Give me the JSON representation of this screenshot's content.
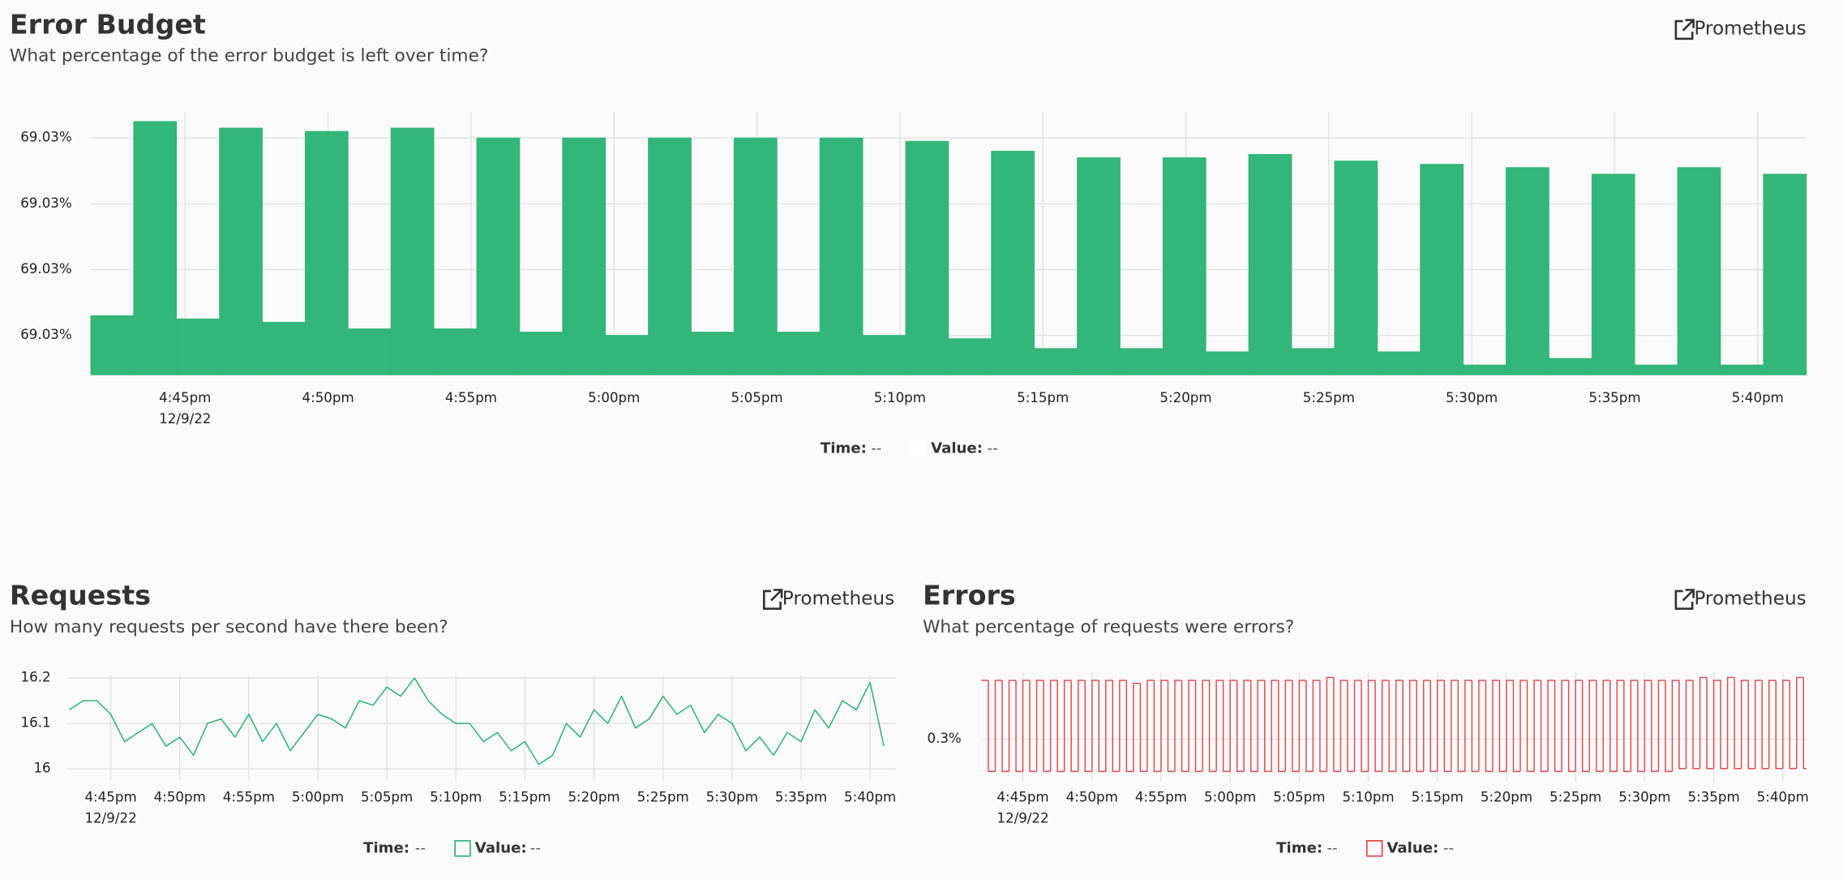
{
  "chart_data": [
    {
      "type": "area",
      "step": true,
      "title": "Error Budget",
      "subtitle": "What percentage of the error budget is left over time?",
      "link": "Prometheus",
      "x": [
        1001.7,
        1003.2,
        1004.7,
        1006.2,
        1007.7,
        1009.2,
        1010.7,
        1012.2,
        1013.7,
        1015.2,
        1016.7,
        1018.2,
        1019.7,
        1021.2,
        1022.7,
        1024.2,
        1025.7,
        1027.2,
        1028.7,
        1030.2,
        1031.7,
        1033.2,
        1034.7,
        1036.2,
        1037.7,
        1039.2,
        1040.7,
        1042.2,
        1043.7,
        1045.2,
        1046.7,
        1048.2,
        1049.7,
        1051.2,
        1052.7,
        1054.2,
        1055.7,
        1057.2,
        1058.7,
        1060.2
      ],
      "values": [
        69.03306,
        69.03365,
        69.03305,
        69.03363,
        69.03304,
        69.03362,
        69.03302,
        69.03363,
        69.03302,
        69.0336,
        69.03301,
        69.0336,
        69.033,
        69.0336,
        69.03301,
        69.0336,
        69.03301,
        69.0336,
        69.033,
        69.03359,
        69.03299,
        69.03356,
        69.03296,
        69.03354,
        69.03296,
        69.03354,
        69.03295,
        69.03355,
        69.03296,
        69.03353,
        69.03295,
        69.03352,
        69.03291,
        69.03351,
        69.03293,
        69.03349,
        69.03291,
        69.03351,
        69.03291,
        69.03349
      ],
      "color": "#33b679",
      "xlim": [
        1001.7,
        1061.7
      ],
      "xticks": [
        {
          "value": 1005,
          "label": "4:45pm"
        },
        {
          "value": 1010,
          "label": "4:50pm"
        },
        {
          "value": 1015,
          "label": "4:55pm"
        },
        {
          "value": 1020,
          "label": "5:00pm"
        },
        {
          "value": 1025,
          "label": "5:05pm"
        },
        {
          "value": 1030,
          "label": "5:10pm"
        },
        {
          "value": 1035,
          "label": "5:15pm"
        },
        {
          "value": 1040,
          "label": "5:20pm"
        },
        {
          "value": 1045,
          "label": "5:25pm"
        },
        {
          "value": 1050,
          "label": "5:30pm"
        },
        {
          "value": 1055,
          "label": "5:35pm"
        },
        {
          "value": 1060,
          "label": "5:40pm"
        }
      ],
      "x_date_label": "12/9/22",
      "ylim": [
        69.03288,
        69.03368
      ],
      "yticks": [
        {
          "value": 69.033,
          "label": "69.03%"
        },
        {
          "value": 69.0332,
          "label": "69.03%"
        },
        {
          "value": 69.0334,
          "label": "69.03%"
        },
        {
          "value": 69.0336,
          "label": "69.03%"
        }
      ],
      "grid": true,
      "legend": {
        "time_label": "Time:",
        "time_value": "--",
        "value_label": "Value:",
        "value_value": "--",
        "swatch_fill": "#ffffff",
        "swatch_stroke": "none"
      }
    },
    {
      "type": "line",
      "step": false,
      "title": "Requests",
      "subtitle": "How many requests per second have there been?",
      "link": "Prometheus",
      "x": [
        1002,
        1003,
        1004,
        1005,
        1006,
        1007,
        1008,
        1009,
        1010,
        1011,
        1012,
        1013,
        1014,
        1015,
        1016,
        1017,
        1018,
        1019,
        1020,
        1021,
        1022,
        1023,
        1024,
        1025,
        1026,
        1027,
        1028,
        1029,
        1030,
        1031,
        1032,
        1033,
        1034,
        1035,
        1036,
        1037,
        1038,
        1039,
        1040,
        1041,
        1042,
        1043,
        1044,
        1045,
        1046,
        1047,
        1048,
        1049,
        1050,
        1051,
        1052,
        1053,
        1054,
        1055,
        1056,
        1057,
        1058,
        1059,
        1060,
        1061
      ],
      "values": [
        16.13,
        16.15,
        16.15,
        16.12,
        16.06,
        16.08,
        16.1,
        16.05,
        16.07,
        16.03,
        16.1,
        16.11,
        16.07,
        16.12,
        16.06,
        16.1,
        16.04,
        16.08,
        16.12,
        16.11,
        16.09,
        16.15,
        16.14,
        16.18,
        16.16,
        16.2,
        16.15,
        16.12,
        16.1,
        16.1,
        16.06,
        16.08,
        16.04,
        16.06,
        16.01,
        16.03,
        16.1,
        16.07,
        16.13,
        16.1,
        16.16,
        16.09,
        16.11,
        16.16,
        16.12,
        16.14,
        16.08,
        16.12,
        16.1,
        16.04,
        16.07,
        16.03,
        16.08,
        16.06,
        16.13,
        16.09,
        16.15,
        16.13,
        16.19,
        16.05
      ],
      "color": "#35b57a",
      "xlim": [
        1001.85,
        1061.85
      ],
      "xticks": [
        {
          "value": 1005,
          "label": "4:45pm"
        },
        {
          "value": 1010,
          "label": "4:50pm"
        },
        {
          "value": 1015,
          "label": "4:55pm"
        },
        {
          "value": 1020,
          "label": "5:00pm"
        },
        {
          "value": 1025,
          "label": "5:05pm"
        },
        {
          "value": 1030,
          "label": "5:10pm"
        },
        {
          "value": 1035,
          "label": "5:15pm"
        },
        {
          "value": 1040,
          "label": "5:20pm"
        },
        {
          "value": 1045,
          "label": "5:25pm"
        },
        {
          "value": 1050,
          "label": "5:30pm"
        },
        {
          "value": 1055,
          "label": "5:35pm"
        },
        {
          "value": 1060,
          "label": "5:40pm"
        }
      ],
      "x_date_label": "12/9/22",
      "ylim": [
        15.975,
        16.205
      ],
      "yticks": [
        16,
        16.1,
        16.2
      ],
      "grid": true,
      "legend": {
        "time_label": "Time:",
        "time_value": "--",
        "value_label": "Value:",
        "value_value": "--",
        "swatch_fill": "none",
        "swatch_stroke": "#35b57a"
      }
    },
    {
      "type": "line",
      "step": true,
      "title": "Errors",
      "subtitle": "What percentage of requests were errors?",
      "link": "Prometheus",
      "x": [
        1002,
        1002.5,
        1003,
        1003.5,
        1004,
        1004.5,
        1005,
        1005.5,
        1006,
        1006.5,
        1007,
        1007.5,
        1008,
        1008.5,
        1009,
        1009.5,
        1010,
        1010.5,
        1011,
        1011.5,
        1012,
        1012.5,
        1013,
        1013.5,
        1014,
        1014.5,
        1015,
        1015.5,
        1016,
        1016.5,
        1017,
        1017.5,
        1018,
        1018.5,
        1019,
        1019.5,
        1020,
        1020.5,
        1021,
        1021.5,
        1022,
        1022.5,
        1023,
        1023.5,
        1024,
        1024.5,
        1025,
        1025.5,
        1026,
        1026.5,
        1027,
        1027.5,
        1028,
        1028.5,
        1029,
        1029.5,
        1030,
        1030.5,
        1031,
        1031.5,
        1032,
        1032.5,
        1033,
        1033.5,
        1034,
        1034.5,
        1035,
        1035.5,
        1036,
        1036.5,
        1037,
        1037.5,
        1038,
        1038.5,
        1039,
        1039.5,
        1040,
        1040.5,
        1041,
        1041.5,
        1042,
        1042.5,
        1043,
        1043.5,
        1044,
        1044.5,
        1045,
        1045.5,
        1046,
        1046.5,
        1047,
        1047.5,
        1048,
        1048.5,
        1049,
        1049.5,
        1050,
        1050.5,
        1051,
        1051.5,
        1052,
        1052.5,
        1053,
        1053.5,
        1054,
        1054.5,
        1055,
        1055.5,
        1056,
        1056.5,
        1057,
        1057.5,
        1058,
        1058.5,
        1059,
        1059.5,
        1060,
        1060.5,
        1061,
        1061.5
      ],
      "values": [
        0.32,
        0.289,
        0.32,
        0.289,
        0.32,
        0.289,
        0.32,
        0.289,
        0.32,
        0.289,
        0.32,
        0.289,
        0.32,
        0.289,
        0.32,
        0.289,
        0.32,
        0.289,
        0.32,
        0.289,
        0.32,
        0.289,
        0.319,
        0.289,
        0.32,
        0.289,
        0.32,
        0.289,
        0.32,
        0.289,
        0.32,
        0.289,
        0.32,
        0.289,
        0.32,
        0.289,
        0.32,
        0.289,
        0.32,
        0.289,
        0.32,
        0.289,
        0.32,
        0.289,
        0.32,
        0.289,
        0.32,
        0.289,
        0.32,
        0.289,
        0.321,
        0.289,
        0.32,
        0.289,
        0.32,
        0.289,
        0.32,
        0.289,
        0.32,
        0.289,
        0.32,
        0.289,
        0.32,
        0.289,
        0.32,
        0.289,
        0.32,
        0.289,
        0.32,
        0.289,
        0.32,
        0.289,
        0.32,
        0.289,
        0.32,
        0.289,
        0.32,
        0.289,
        0.32,
        0.289,
        0.32,
        0.289,
        0.32,
        0.289,
        0.32,
        0.289,
        0.32,
        0.289,
        0.32,
        0.289,
        0.32,
        0.289,
        0.32,
        0.289,
        0.32,
        0.289,
        0.32,
        0.289,
        0.32,
        0.289,
        0.32,
        0.29,
        0.32,
        0.29,
        0.321,
        0.29,
        0.32,
        0.29,
        0.321,
        0.29,
        0.32,
        0.29,
        0.32,
        0.29,
        0.32,
        0.29,
        0.32,
        0.29,
        0.321,
        0.29
      ],
      "color": "#e0474c",
      "xlim": [
        1002,
        1061.7
      ],
      "xticks": [
        {
          "value": 1005,
          "label": "4:45pm"
        },
        {
          "value": 1010,
          "label": "4:50pm"
        },
        {
          "value": 1015,
          "label": "4:55pm"
        },
        {
          "value": 1020,
          "label": "5:00pm"
        },
        {
          "value": 1025,
          "label": "5:05pm"
        },
        {
          "value": 1030,
          "label": "5:10pm"
        },
        {
          "value": 1035,
          "label": "5:15pm"
        },
        {
          "value": 1040,
          "label": "5:20pm"
        },
        {
          "value": 1045,
          "label": "5:25pm"
        },
        {
          "value": 1050,
          "label": "5:30pm"
        },
        {
          "value": 1055,
          "label": "5:35pm"
        },
        {
          "value": 1060,
          "label": "5:40pm"
        }
      ],
      "x_date_label": "12/9/22",
      "ylim": [
        0.2856,
        0.3228
      ],
      "yticks": [
        {
          "value": 0.3,
          "label": "0.3%"
        }
      ],
      "grid": true,
      "legend": {
        "time_label": "Time:",
        "time_value": "--",
        "value_label": "Value:",
        "value_value": "--",
        "swatch_fill": "none",
        "swatch_stroke": "#e0474c"
      }
    }
  ]
}
